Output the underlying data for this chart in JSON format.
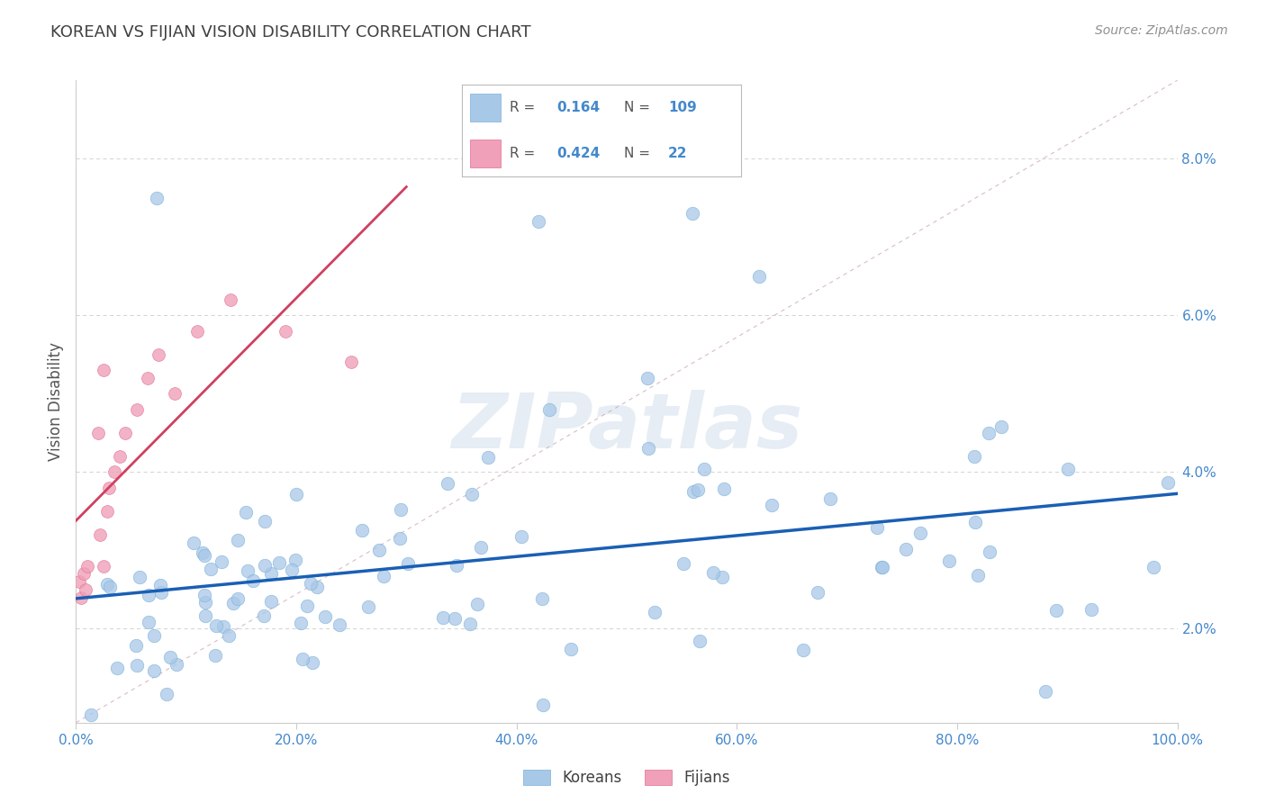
{
  "title": "KOREAN VS FIJIAN VISION DISABILITY CORRELATION CHART",
  "source": "Source: ZipAtlas.com",
  "xlabel": "",
  "ylabel": "Vision Disability",
  "xlim": [
    0.0,
    1.0
  ],
  "ylim": [
    0.008,
    0.09
  ],
  "xtick_labels": [
    "0.0%",
    "20.0%",
    "40.0%",
    "60.0%",
    "80.0%",
    "100.0%"
  ],
  "xtick_vals": [
    0.0,
    0.2,
    0.4,
    0.6,
    0.8,
    1.0
  ],
  "ytick_labels": [
    "2.0%",
    "4.0%",
    "6.0%",
    "8.0%"
  ],
  "ytick_vals": [
    0.02,
    0.04,
    0.06,
    0.08
  ],
  "korean_R": 0.164,
  "korean_N": 109,
  "fijian_R": 0.424,
  "fijian_N": 22,
  "korean_color": "#a8c8e8",
  "korean_edge_color": "#7ab0d8",
  "fijian_color": "#f0a0b8",
  "fijian_edge_color": "#e07090",
  "korean_line_color": "#1a5fb4",
  "fijian_line_color": "#d04060",
  "diagonal_color": "#c8a0b0",
  "watermark": "ZIPatlas",
  "title_color": "#404040",
  "source_color": "#909090",
  "r_label_color": "#4488cc",
  "background_color": "#ffffff"
}
